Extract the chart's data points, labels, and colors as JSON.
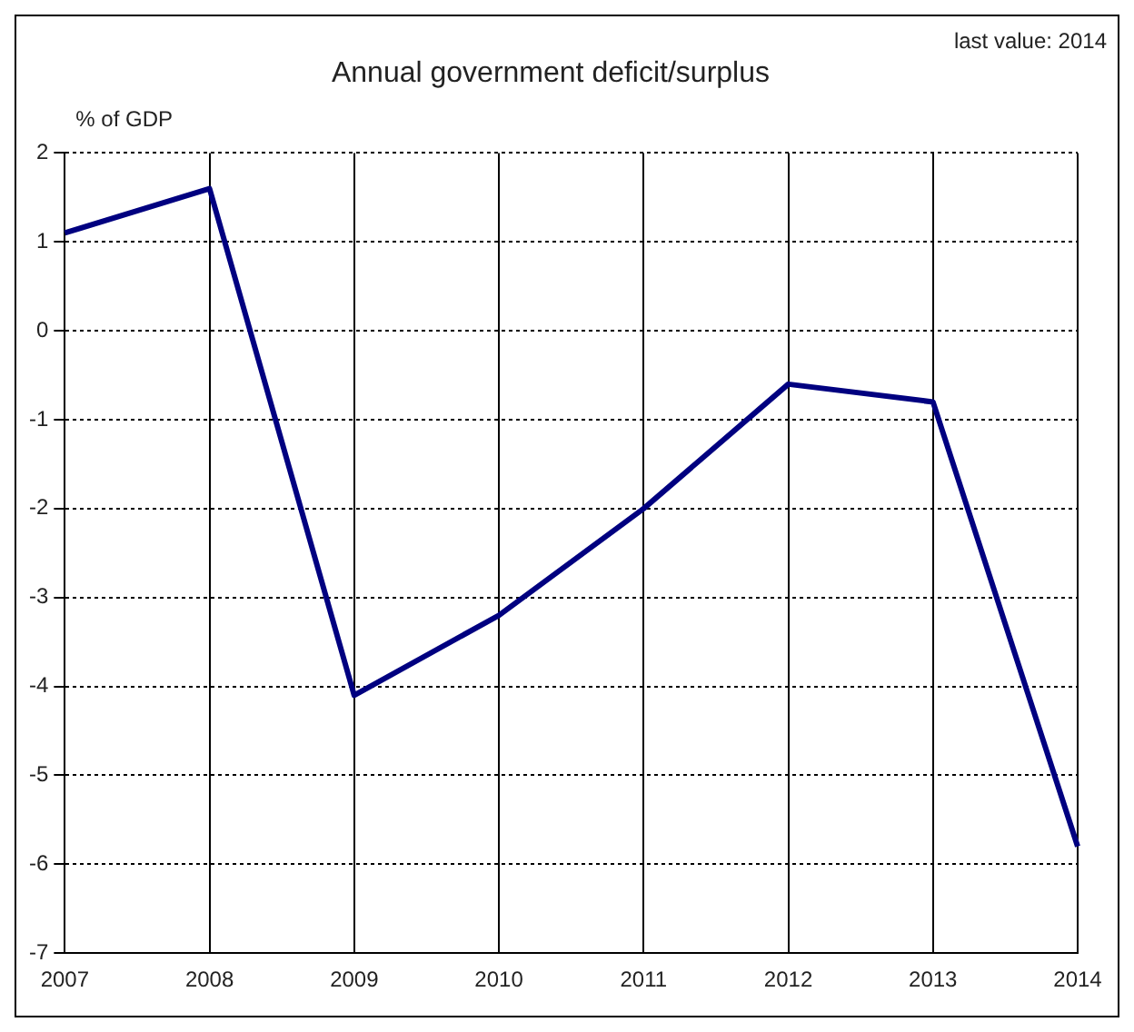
{
  "chart_data": {
    "type": "line",
    "title": "Annual government deficit/surplus",
    "ylabel": "% of GDP",
    "annotations": [
      "last value: 2014"
    ],
    "categories": [
      "2007",
      "2008",
      "2009",
      "2010",
      "2011",
      "2012",
      "2013",
      "2014"
    ],
    "series": [
      {
        "color": "#000080",
        "values": [
          1.1,
          1.6,
          -4.1,
          -3.2,
          -2.0,
          -0.6,
          -0.8,
          -5.8
        ]
      }
    ],
    "ylim": [
      -7,
      2
    ],
    "yticks": [
      -7,
      -6,
      -5,
      -4,
      -3,
      -2,
      -1,
      0,
      1,
      2
    ],
    "grid": true,
    "legend": false,
    "marker": "none",
    "line_style": "solid"
  }
}
